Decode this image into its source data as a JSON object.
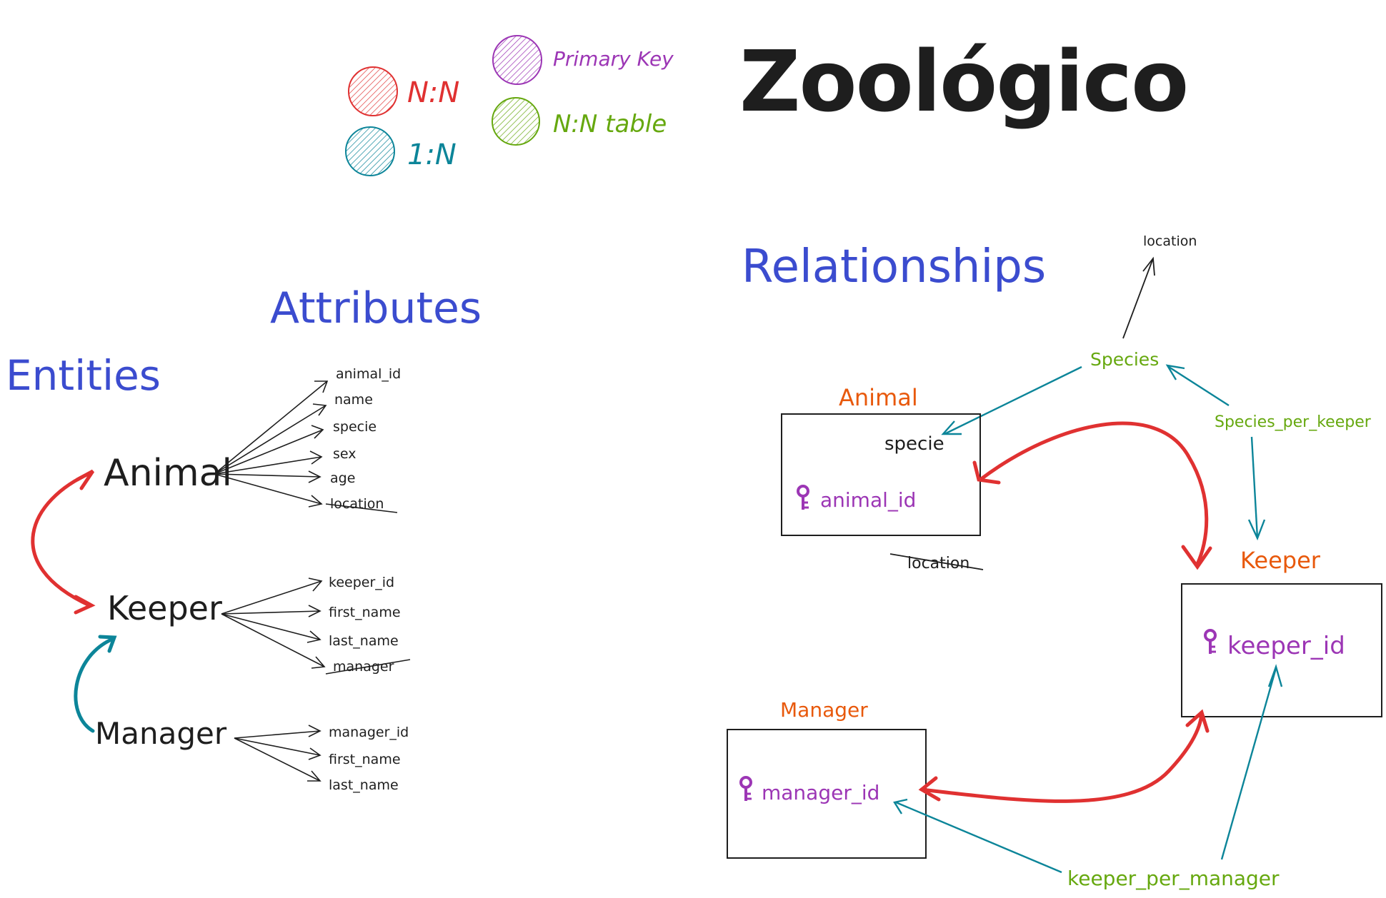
{
  "title": "Zoológico",
  "legend": {
    "nn": {
      "label": "N:N",
      "color": "#e03131"
    },
    "one_n": {
      "label": "1:N",
      "color": "#0c8599"
    },
    "pk": {
      "label": "Primary Key",
      "color": "#9c36b5"
    },
    "nn_table": {
      "label": "N:N table",
      "color": "#66a80f"
    }
  },
  "headings": {
    "attributes": "Attributes",
    "entities": "Entities",
    "relationships": "Relationships"
  },
  "entities": {
    "animal": {
      "name": "Animal",
      "attributes": [
        "animal_id",
        "name",
        "specie",
        "sex",
        "age",
        "location"
      ]
    },
    "keeper": {
      "name": "Keeper",
      "attributes": [
        "keeper_id",
        "first_name",
        "last_name",
        "manager"
      ]
    },
    "manager": {
      "name": "Manager",
      "attributes": [
        "manager_id",
        "first_name",
        "last_name"
      ]
    }
  },
  "relationships": {
    "location": "location",
    "species": "Species",
    "species_per_keeper": "Species_per_keeper",
    "keeper_per_manager": "keeper_per_manager",
    "animal_box": {
      "title": "Animal",
      "field": "specie",
      "pk": "animal_id",
      "struck": "location"
    },
    "keeper_box": {
      "title": "Keeper",
      "pk": "keeper_id"
    },
    "manager_box": {
      "title": "Manager",
      "pk": "manager_id"
    }
  },
  "colors": {
    "heading": "#3b4ccf",
    "entity_title": "#e8590c",
    "ink": "#1e1e1e"
  }
}
